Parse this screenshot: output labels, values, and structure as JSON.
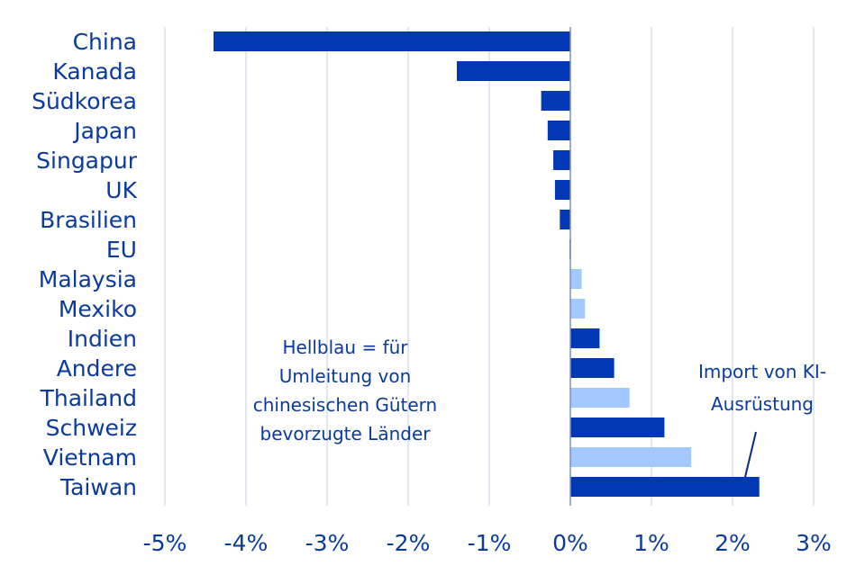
{
  "chart_data": {
    "type": "bar",
    "orientation": "horizontal",
    "title": "",
    "xlabel": "",
    "ylabel": "",
    "xlim": [
      -5,
      3
    ],
    "xticks": [
      -5,
      -4,
      -3,
      -2,
      -1,
      0,
      1,
      2,
      3
    ],
    "xtick_labels": [
      "-5%",
      "-4%",
      "-3%",
      "-2%",
      "-1%",
      "0%",
      "1%",
      "2%",
      "3%"
    ],
    "grid": "vertical",
    "unit": "%",
    "categories": [
      "China",
      "Kanada",
      "Südkorea",
      "Japan",
      "Singapur",
      "UK",
      "Brasilien",
      "EU",
      "Malaysia",
      "Mexiko",
      "Indien",
      "Andere",
      "Thailand",
      "Schweiz",
      "Vietnam",
      "Taiwan"
    ],
    "values": [
      -4.4,
      -1.4,
      -0.36,
      -0.28,
      -0.21,
      -0.19,
      -0.13,
      -0.01,
      0.14,
      0.18,
      0.36,
      0.54,
      0.73,
      1.16,
      1.49,
      2.33
    ],
    "highlight": [
      false,
      false,
      false,
      false,
      false,
      false,
      false,
      false,
      true,
      true,
      false,
      false,
      true,
      false,
      true,
      false
    ],
    "colors": {
      "default": "#0039b3",
      "highlight": "#a3c8ff",
      "text": "#0a3a9c",
      "grid": "#d5e1ee"
    },
    "annotations": [
      {
        "id": "legend-note",
        "lines": [
          "Hellblau = für",
          "Umleitung von",
          "chinesischen Gütern",
          "bevorzugte Länder"
        ]
      },
      {
        "id": "taiwan-note",
        "target": "Taiwan",
        "lines": [
          "Import von KI-",
          "Ausrüstung"
        ]
      }
    ]
  }
}
